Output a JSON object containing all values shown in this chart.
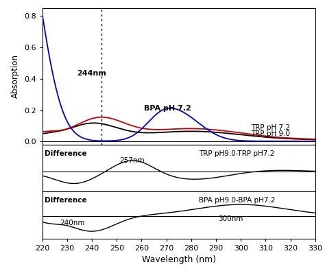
{
  "x_min": 220,
  "x_max": 330,
  "x_ticks": [
    220,
    230,
    240,
    250,
    260,
    270,
    280,
    290,
    300,
    310,
    320,
    330
  ],
  "upper_ylim": [
    -0.02,
    0.85
  ],
  "upper_yticks": [
    0.0,
    0.2,
    0.4,
    0.6,
    0.8
  ],
  "ylabel_upper": "Absorption",
  "xlabel": "Wavelength (nm)",
  "annotation_244": "244nm",
  "annotation_bpa": "BPA pH 7.2",
  "annotation_trp72": "TRP pH 7.2",
  "annotation_trp90": "TRP pH 9.0",
  "diff1_label_left": "Difference",
  "diff1_label_right": "TRP pH9.0-TRP pH7.2",
  "diff1_annotation_257": "257nm",
  "diff2_label_left": "Difference",
  "diff2_label_right": "BPA pH9.0-BPA pH7.2",
  "diff2_annotation_240": "240nm",
  "diff2_annotation_300": "300nm",
  "color_trp72": "#cc0000",
  "color_trp90": "#000000",
  "color_bpa72": "#0000cc",
  "color_diff": "#000000",
  "vline_x": 244
}
